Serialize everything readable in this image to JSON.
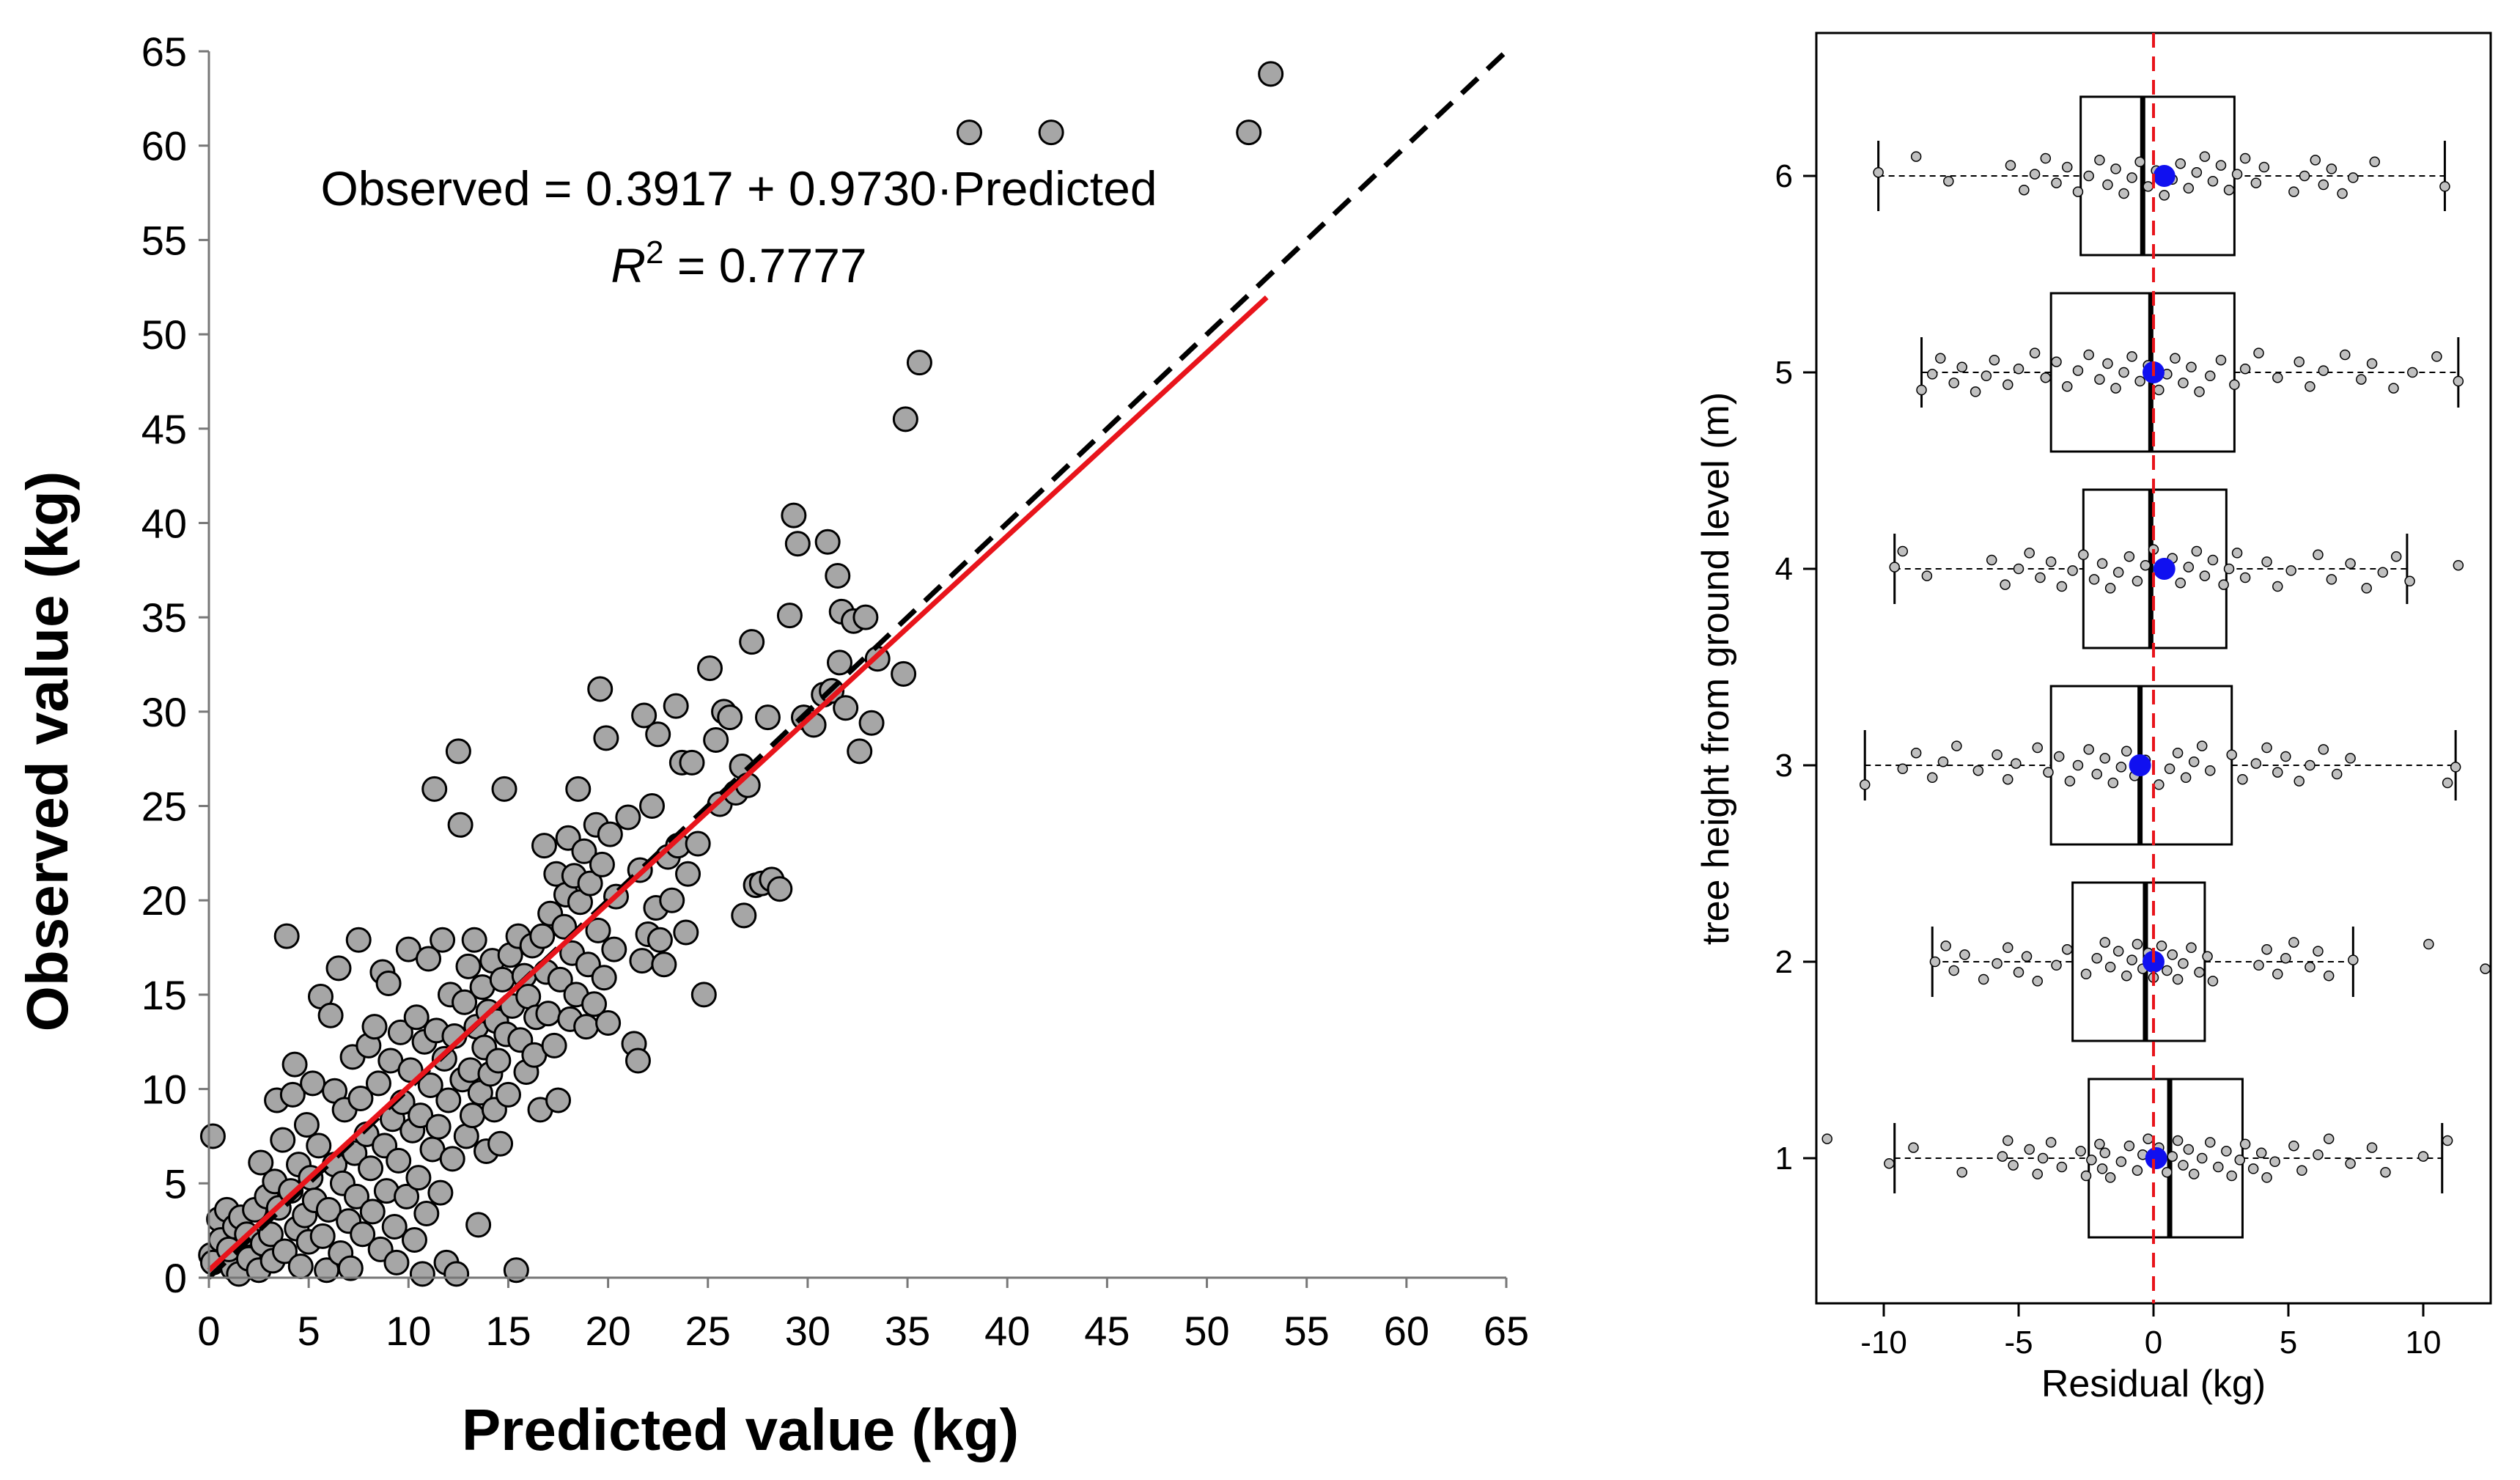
{
  "chart_data": [
    {
      "type": "scatter",
      "xlabel": "Predicted value (kg)",
      "ylabel": "Observed value (kg)",
      "xlim": [
        0,
        65
      ],
      "ylim": [
        0,
        65
      ],
      "xticks": [
        "0",
        "5",
        "10",
        "15",
        "20",
        "25",
        "30",
        "35",
        "40",
        "45",
        "50",
        "55",
        "60",
        "65"
      ],
      "yticks": [
        "0",
        "5",
        "10",
        "15",
        "20",
        "25",
        "30",
        "35",
        "40",
        "45",
        "50",
        "55",
        "60",
        "65"
      ],
      "annotation": {
        "equation": "Observed = 0.3917 + 0.9730·Predicted",
        "r2_label": "R",
        "r2_sup": "2",
        "r2_value": " = 0.7777"
      },
      "fit_line": {
        "intercept": 0.3917,
        "slope": 0.973,
        "x_range": [
          0,
          53
        ],
        "color": "#e8141b"
      },
      "identity_line": {
        "x_range": [
          0,
          65
        ],
        "style": "dashed",
        "color": "#000000"
      },
      "marker_color": "#a6a6a6",
      "points": [
        [
          0.2,
          7.5
        ],
        [
          0.1,
          1.2
        ],
        [
          0.2,
          0.8
        ],
        [
          0.5,
          3.1
        ],
        [
          0.6,
          2.0
        ],
        [
          0.9,
          3.6
        ],
        [
          1.2,
          0.5
        ],
        [
          1.0,
          1.5
        ],
        [
          1.3,
          2.7
        ],
        [
          1.5,
          0.2
        ],
        [
          1.6,
          3.2
        ],
        [
          1.9,
          2.3
        ],
        [
          2.0,
          1.0
        ],
        [
          2.3,
          3.6
        ],
        [
          2.5,
          0.4
        ],
        [
          2.7,
          1.8
        ],
        [
          2.6,
          6.1
        ],
        [
          2.9,
          4.3
        ],
        [
          3.1,
          2.3
        ],
        [
          3.2,
          0.9
        ],
        [
          3.3,
          5.1
        ],
        [
          3.4,
          9.4
        ],
        [
          3.5,
          3.7
        ],
        [
          3.7,
          7.3
        ],
        [
          3.8,
          1.4
        ],
        [
          3.9,
          18.1
        ],
        [
          4.1,
          4.6
        ],
        [
          4.2,
          9.7
        ],
        [
          4.3,
          11.3
        ],
        [
          4.4,
          2.6
        ],
        [
          4.5,
          6.0
        ],
        [
          4.6,
          0.6
        ],
        [
          4.8,
          3.3
        ],
        [
          4.9,
          8.1
        ],
        [
          5.0,
          1.9
        ],
        [
          5.1,
          5.3
        ],
        [
          5.2,
          10.3
        ],
        [
          5.3,
          4.1
        ],
        [
          5.5,
          7.0
        ],
        [
          5.6,
          14.9
        ],
        [
          5.7,
          2.2
        ],
        [
          5.9,
          0.4
        ],
        [
          6.0,
          3.6
        ],
        [
          6.1,
          13.9
        ],
        [
          6.3,
          9.9
        ],
        [
          6.3,
          6.0
        ],
        [
          6.5,
          16.4
        ],
        [
          6.6,
          1.3
        ],
        [
          6.7,
          5.0
        ],
        [
          6.8,
          8.9
        ],
        [
          7.0,
          3.0
        ],
        [
          7.1,
          0.5
        ],
        [
          7.2,
          11.7
        ],
        [
          7.3,
          6.6
        ],
        [
          7.4,
          4.3
        ],
        [
          7.5,
          17.9
        ],
        [
          7.6,
          9.5
        ],
        [
          7.7,
          2.3
        ],
        [
          7.9,
          7.6
        ],
        [
          8.0,
          12.3
        ],
        [
          8.1,
          5.8
        ],
        [
          8.2,
          3.5
        ],
        [
          8.3,
          13.3
        ],
        [
          8.5,
          10.3
        ],
        [
          8.6,
          1.5
        ],
        [
          8.7,
          16.2
        ],
        [
          8.8,
          7.0
        ],
        [
          8.9,
          4.6
        ],
        [
          9.0,
          15.6
        ],
        [
          9.1,
          11.5
        ],
        [
          9.2,
          8.4
        ],
        [
          9.3,
          2.7
        ],
        [
          9.4,
          0.8
        ],
        [
          9.5,
          6.2
        ],
        [
          9.6,
          13.0
        ],
        [
          9.7,
          9.3
        ],
        [
          9.9,
          4.3
        ],
        [
          10.0,
          17.4
        ],
        [
          10.1,
          11.0
        ],
        [
          10.2,
          7.8
        ],
        [
          10.3,
          2.0
        ],
        [
          10.4,
          13.8
        ],
        [
          10.5,
          5.3
        ],
        [
          10.6,
          8.6
        ],
        [
          10.7,
          0.2
        ],
        [
          10.8,
          12.5
        ],
        [
          10.9,
          3.4
        ],
        [
          11.0,
          16.9
        ],
        [
          11.1,
          10.2
        ],
        [
          11.2,
          6.8
        ],
        [
          11.3,
          25.9
        ],
        [
          11.4,
          13.1
        ],
        [
          11.5,
          8.0
        ],
        [
          11.6,
          4.5
        ],
        [
          11.7,
          17.9
        ],
        [
          11.8,
          11.6
        ],
        [
          11.9,
          0.8
        ],
        [
          12.0,
          9.4
        ],
        [
          12.1,
          15.0
        ],
        [
          12.2,
          6.3
        ],
        [
          12.3,
          12.8
        ],
        [
          12.4,
          0.2
        ],
        [
          12.5,
          27.9
        ],
        [
          12.6,
          24.0
        ],
        [
          12.7,
          10.5
        ],
        [
          12.8,
          14.6
        ],
        [
          12.9,
          7.5
        ],
        [
          13.0,
          16.5
        ],
        [
          13.1,
          11.0
        ],
        [
          13.2,
          8.6
        ],
        [
          13.3,
          17.9
        ],
        [
          13.4,
          13.3
        ],
        [
          13.5,
          2.8
        ],
        [
          13.6,
          9.8
        ],
        [
          13.7,
          15.4
        ],
        [
          13.8,
          12.2
        ],
        [
          13.9,
          6.7
        ],
        [
          14.0,
          14.1
        ],
        [
          14.1,
          10.8
        ],
        [
          14.2,
          16.8
        ],
        [
          14.3,
          8.9
        ],
        [
          14.4,
          13.6
        ],
        [
          14.5,
          11.5
        ],
        [
          14.6,
          7.1
        ],
        [
          14.7,
          15.8
        ],
        [
          14.8,
          25.9
        ],
        [
          14.9,
          12.9
        ],
        [
          15.0,
          9.7
        ],
        [
          15.1,
          17.1
        ],
        [
          15.2,
          14.4
        ],
        [
          15.4,
          0.4
        ],
        [
          15.5,
          18.1
        ],
        [
          15.6,
          12.6
        ],
        [
          15.8,
          16.0
        ],
        [
          15.9,
          10.9
        ],
        [
          16.0,
          14.9
        ],
        [
          16.2,
          17.6
        ],
        [
          16.3,
          11.8
        ],
        [
          16.4,
          13.8
        ],
        [
          16.6,
          8.9
        ],
        [
          16.7,
          18.1
        ],
        [
          16.8,
          22.9
        ],
        [
          16.9,
          16.2
        ],
        [
          17.0,
          14.0
        ],
        [
          17.1,
          19.3
        ],
        [
          17.3,
          12.3
        ],
        [
          17.4,
          21.4
        ],
        [
          17.5,
          9.4
        ],
        [
          17.6,
          15.8
        ],
        [
          17.8,
          18.6
        ],
        [
          17.9,
          20.3
        ],
        [
          18.0,
          23.3
        ],
        [
          18.1,
          13.7
        ],
        [
          18.2,
          17.2
        ],
        [
          18.3,
          21.3
        ],
        [
          18.4,
          15.0
        ],
        [
          18.5,
          25.9
        ],
        [
          18.6,
          19.9
        ],
        [
          18.8,
          22.6
        ],
        [
          18.9,
          13.3
        ],
        [
          19.0,
          16.6
        ],
        [
          19.1,
          20.9
        ],
        [
          19.3,
          14.5
        ],
        [
          19.4,
          24.0
        ],
        [
          19.5,
          18.4
        ],
        [
          19.6,
          31.2
        ],
        [
          19.7,
          21.9
        ],
        [
          19.8,
          15.9
        ],
        [
          19.9,
          28.6
        ],
        [
          20.0,
          13.5
        ],
        [
          20.1,
          23.5
        ],
        [
          20.3,
          17.4
        ],
        [
          20.4,
          20.2
        ],
        [
          21.0,
          24.4
        ],
        [
          21.3,
          12.4
        ],
        [
          21.5,
          11.5
        ],
        [
          21.6,
          21.6
        ],
        [
          21.7,
          16.8
        ],
        [
          21.8,
          29.8
        ],
        [
          22.0,
          18.2
        ],
        [
          22.2,
          25.0
        ],
        [
          22.4,
          19.6
        ],
        [
          22.5,
          28.8
        ],
        [
          22.6,
          17.9
        ],
        [
          22.8,
          16.6
        ],
        [
          23.0,
          22.3
        ],
        [
          23.2,
          20.0
        ],
        [
          23.4,
          30.3
        ],
        [
          23.5,
          22.9
        ],
        [
          23.7,
          27.3
        ],
        [
          23.9,
          18.3
        ],
        [
          24.0,
          21.4
        ],
        [
          24.2,
          27.3
        ],
        [
          24.5,
          23.0
        ],
        [
          24.8,
          15.0
        ],
        [
          25.1,
          32.3
        ],
        [
          25.4,
          28.5
        ],
        [
          25.6,
          25.1
        ],
        [
          25.8,
          30.0
        ],
        [
          26.1,
          29.7
        ],
        [
          26.4,
          25.7
        ],
        [
          26.7,
          27.1
        ],
        [
          26.8,
          19.2
        ],
        [
          27.0,
          26.1
        ],
        [
          27.2,
          33.7
        ],
        [
          27.4,
          20.8
        ],
        [
          27.7,
          20.9
        ],
        [
          28.0,
          29.7
        ],
        [
          28.2,
          21.1
        ],
        [
          28.6,
          20.6
        ],
        [
          29.1,
          35.1
        ],
        [
          29.3,
          40.4
        ],
        [
          29.5,
          38.9
        ],
        [
          29.8,
          29.7
        ],
        [
          30.3,
          29.3
        ],
        [
          30.8,
          30.9
        ],
        [
          31.0,
          39.0
        ],
        [
          31.2,
          31.1
        ],
        [
          31.5,
          37.2
        ],
        [
          31.7,
          35.3
        ],
        [
          31.6,
          32.6
        ],
        [
          31.9,
          30.2
        ],
        [
          32.3,
          34.8
        ],
        [
          32.6,
          27.9
        ],
        [
          32.9,
          35.0
        ],
        [
          33.2,
          29.4
        ],
        [
          33.5,
          32.8
        ],
        [
          34.8,
          32.0
        ],
        [
          34.9,
          45.5
        ],
        [
          35.6,
          48.5
        ],
        [
          38.1,
          60.7
        ],
        [
          42.2,
          60.7
        ],
        [
          52.1,
          60.7
        ],
        [
          53.2,
          63.8
        ]
      ]
    },
    {
      "type": "boxplot",
      "xlabel": "Residual (kg)",
      "ylabel": "tree height from ground level (m)",
      "xlim": [
        -12.5,
        12.5
      ],
      "xticks": [
        "-10",
        "-5",
        "0",
        "5",
        "10"
      ],
      "yticks": [
        "1",
        "2",
        "3",
        "4",
        "5",
        "6"
      ],
      "zero_line_color": "#e8141b",
      "mean_color": "#1010f0",
      "point_color": "#c0c0c0",
      "groups": [
        {
          "label": "1",
          "whisker_min": -9.6,
          "q1": -2.4,
          "median": 0.6,
          "q3": 3.3,
          "whisker_max": 10.7,
          "mean": 0.1,
          "points": [
            -12.1,
            -9.8,
            -8.9,
            -7.1,
            -5.6,
            -5.4,
            -5.2,
            -4.6,
            -4.3,
            -4.1,
            -3.8,
            -3.4,
            -2.7,
            -2.5,
            -2.3,
            -2.0,
            -1.9,
            -1.8,
            -1.6,
            -1.2,
            -0.9,
            -0.6,
            -0.4,
            -0.2,
            0.1,
            0.2,
            0.5,
            0.7,
            0.9,
            1.1,
            1.3,
            1.5,
            1.8,
            2.1,
            2.4,
            2.7,
            2.9,
            3.2,
            3.4,
            3.7,
            4.0,
            4.2,
            4.5,
            5.2,
            5.5,
            6.1,
            6.5,
            7.3,
            8.1,
            8.6,
            10.0,
            10.9
          ]
        },
        {
          "label": "2",
          "whisker_min": -8.2,
          "q1": -3.0,
          "median": -0.3,
          "q3": 1.9,
          "whisker_max": 7.4,
          "mean": 0.0,
          "points": [
            -8.1,
            -7.7,
            -7.4,
            -7.0,
            -6.3,
            -5.8,
            -5.4,
            -5.0,
            -4.7,
            -4.3,
            -3.6,
            -3.2,
            -2.5,
            -2.1,
            -1.8,
            -1.6,
            -1.3,
            -1.0,
            -0.8,
            -0.6,
            -0.4,
            -0.2,
            0.0,
            0.2,
            0.3,
            0.5,
            0.7,
            0.9,
            1.1,
            1.4,
            1.7,
            2.0,
            2.2,
            3.9,
            4.2,
            4.6,
            4.9,
            5.2,
            5.8,
            6.1,
            6.5,
            7.4,
            10.2,
            12.3
          ]
        },
        {
          "label": "3",
          "whisker_min": -10.7,
          "q1": -3.8,
          "median": -0.5,
          "q3": 2.9,
          "whisker_max": 11.2,
          "mean": -0.5,
          "points": [
            -10.7,
            -9.3,
            -8.8,
            -8.2,
            -7.8,
            -7.3,
            -6.5,
            -5.8,
            -5.4,
            -5.1,
            -4.3,
            -3.9,
            -3.5,
            -3.1,
            -2.8,
            -2.4,
            -2.1,
            -1.8,
            -1.5,
            -1.2,
            -1.0,
            -0.7,
            -0.3,
            0.2,
            0.6,
            0.9,
            1.2,
            1.5,
            1.8,
            2.1,
            2.9,
            3.3,
            3.8,
            4.2,
            4.6,
            4.9,
            5.4,
            5.8,
            6.3,
            6.8,
            7.3,
            10.9,
            11.2
          ]
        },
        {
          "label": "4",
          "whisker_min": -9.6,
          "q1": -2.6,
          "median": -0.1,
          "q3": 2.7,
          "whisker_max": 9.4,
          "mean": 0.4,
          "points": [
            -9.6,
            -9.3,
            -8.4,
            -6.0,
            -5.5,
            -5.0,
            -4.6,
            -4.2,
            -3.8,
            -3.4,
            -3.0,
            -2.6,
            -2.2,
            -1.9,
            -1.6,
            -1.3,
            -0.9,
            -0.6,
            -0.3,
            0.0,
            0.4,
            0.7,
            1.0,
            1.3,
            1.6,
            1.9,
            2.2,
            2.6,
            2.8,
            3.1,
            3.4,
            4.2,
            4.6,
            5.1,
            6.1,
            6.6,
            7.3,
            7.9,
            8.5,
            9.0,
            9.5,
            11.3
          ]
        },
        {
          "label": "5",
          "whisker_min": -8.6,
          "q1": -3.8,
          "median": -0.1,
          "q3": 3.0,
          "whisker_max": 11.3,
          "mean": 0.0,
          "points": [
            -8.6,
            -8.2,
            -7.9,
            -7.4,
            -7.1,
            -6.6,
            -6.2,
            -5.9,
            -5.4,
            -5.0,
            -4.4,
            -4.0,
            -3.6,
            -3.2,
            -2.8,
            -2.4,
            -2.0,
            -1.7,
            -1.4,
            -1.1,
            -0.8,
            -0.5,
            -0.2,
            0.2,
            0.5,
            0.8,
            1.1,
            1.4,
            1.7,
            2.1,
            2.5,
            3.0,
            3.4,
            3.9,
            4.6,
            5.4,
            5.8,
            6.3,
            7.1,
            7.7,
            8.1,
            8.9,
            9.6,
            10.5,
            11.3
          ]
        },
        {
          "label": "6",
          "whisker_min": -10.2,
          "q1": -2.7,
          "median": -0.4,
          "q3": 3.0,
          "whisker_max": 10.8,
          "mean": 0.4,
          "points": [
            -10.2,
            -8.8,
            -7.6,
            -5.3,
            -4.8,
            -4.4,
            -4.0,
            -3.6,
            -3.2,
            -2.8,
            -2.4,
            -2.0,
            -1.7,
            -1.4,
            -1.1,
            -0.8,
            -0.5,
            -0.2,
            0.1,
            0.4,
            0.7,
            1.0,
            1.3,
            1.6,
            1.9,
            2.2,
            2.5,
            2.8,
            3.1,
            3.4,
            3.8,
            4.1,
            5.2,
            5.6,
            6.0,
            6.3,
            6.6,
            7.0,
            7.4,
            8.2,
            10.8
          ]
        }
      ]
    }
  ]
}
